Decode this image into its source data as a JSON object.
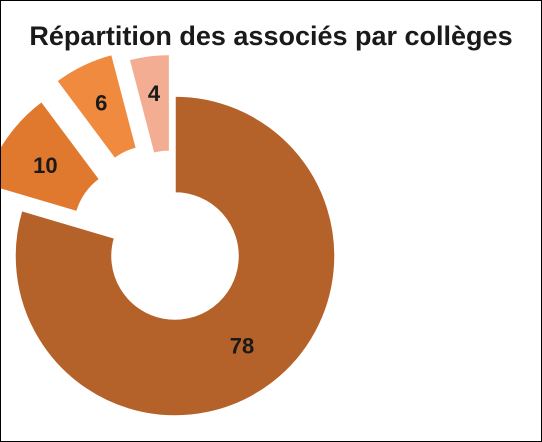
{
  "chart_data": {
    "type": "pie",
    "variant": "donut-exploded",
    "title": "Répartition des associés par collèges",
    "slices": [
      {
        "value": 78,
        "label": "78",
        "color": "#b5612a"
      },
      {
        "value": 10,
        "label": "10",
        "color": "#e0782e"
      },
      {
        "value": 6,
        "label": "6",
        "color": "#f08a3e"
      },
      {
        "value": 4,
        "label": "4",
        "color": "#f2ad92"
      }
    ],
    "start": "12 o'clock",
    "direction": "clockwise",
    "legend": "none"
  }
}
